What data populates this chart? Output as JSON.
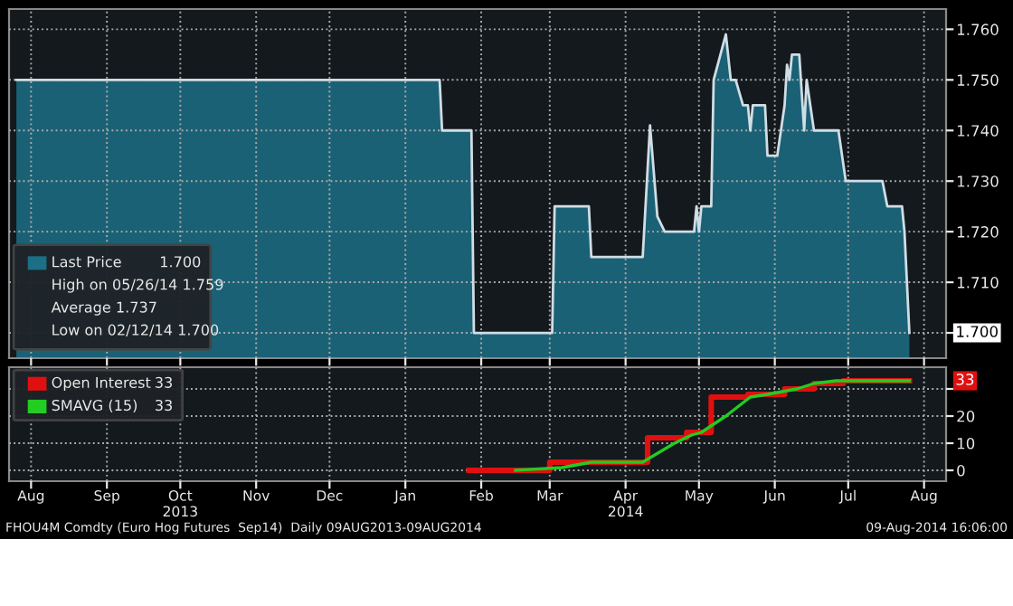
{
  "chart_data": [
    {
      "type": "area",
      "xlim": [
        "2013-08-06",
        "2014-08-24"
      ],
      "ylim": [
        1.695,
        1.764
      ],
      "yticks": [
        {
          "value": 1.7,
          "label": null
        },
        {
          "value": 1.71,
          "label": "1.710"
        },
        {
          "value": 1.72,
          "label": "1.720"
        },
        {
          "value": 1.73,
          "label": "1.730"
        },
        {
          "value": 1.74,
          "label": "1.740"
        },
        {
          "value": 1.75,
          "label": "1.750"
        },
        {
          "value": 1.76,
          "label": "1.760"
        }
      ],
      "xticks": [
        {
          "value": "2013-08-15",
          "label": null
        },
        {
          "value": "2013-09-15",
          "label": null
        },
        {
          "value": "2013-10-15",
          "label": null
        },
        {
          "value": "2013-11-15",
          "label": null
        },
        {
          "value": "2013-12-15",
          "label": null
        },
        {
          "value": "2014-01-15",
          "label": null
        },
        {
          "value": "2014-02-15",
          "label": null
        },
        {
          "value": "2014-03-15",
          "label": null
        },
        {
          "value": "2014-04-15",
          "label": null
        },
        {
          "value": "2014-05-15",
          "label": null
        },
        {
          "value": "2014-06-15",
          "label": null
        },
        {
          "value": "2014-07-15",
          "label": null
        },
        {
          "value": "2014-08-15",
          "label": null
        }
      ],
      "tick_labels": "y",
      "grid": true,
      "legend": "bottom left",
      "series": [
        {
          "name": "Last Price",
          "color": "#1c6f85",
          "x": [
            "2013-08-09",
            "2014-01-29",
            "2014-01-30",
            "2014-02-11",
            "2014-02-12",
            "2014-03-16",
            "2014-03-17",
            "2014-03-31",
            "2014-04-01",
            "2014-04-22",
            "2014-04-25",
            "2014-04-28",
            "2014-05-01",
            "2014-05-13",
            "2014-05-14",
            "2014-05-15",
            "2014-05-16",
            "2014-05-20",
            "2014-05-21",
            "2014-05-26",
            "2014-05-28",
            "2014-05-30",
            "2014-06-02",
            "2014-06-04",
            "2014-06-05",
            "2014-06-06",
            "2014-06-11",
            "2014-06-12",
            "2014-06-16",
            "2014-06-19",
            "2014-06-20",
            "2014-06-21",
            "2014-06-22",
            "2014-06-25",
            "2014-06-27",
            "2014-06-28",
            "2014-07-01",
            "2014-07-11",
            "2014-07-14",
            "2014-07-29",
            "2014-07-31",
            "2014-08-06",
            "2014-08-07",
            "2014-08-09"
          ],
          "values": [
            1.75,
            1.75,
            1.74,
            1.74,
            1.7,
            1.7,
            1.725,
            1.725,
            1.715,
            1.715,
            1.741,
            1.723,
            1.72,
            1.72,
            1.725,
            1.72,
            1.725,
            1.725,
            1.75,
            1.759,
            1.75,
            1.75,
            1.745,
            1.745,
            1.74,
            1.745,
            1.745,
            1.735,
            1.735,
            1.745,
            1.753,
            1.75,
            1.755,
            1.755,
            1.74,
            1.75,
            1.74,
            1.74,
            1.73,
            1.73,
            1.725,
            1.725,
            1.72,
            1.7
          ]
        }
      ],
      "annotations": [
        "1.700",
        "High on 05/26/14 1.759",
        "Average 1.737",
        "Low on 02/12/14 1.700",
        "1.700"
      ]
    },
    {
      "type": "step",
      "xlim": [
        "2013-08-06",
        "2014-08-24"
      ],
      "ylim": [
        -4,
        38
      ],
      "yticks": [
        0,
        10,
        20,
        {
          "value": 30,
          "label": null
        }
      ],
      "xticks": [
        {
          "value": "2013-08-15",
          "label": "Aug"
        },
        {
          "value": "2013-09-15",
          "label": "Sep"
        },
        {
          "value": "2013-10-15",
          "label": "Oct\n2013"
        },
        {
          "value": "2013-11-15",
          "label": "Nov"
        },
        {
          "value": "2013-12-15",
          "label": "Dec"
        },
        {
          "value": "2014-01-15",
          "label": "Jan"
        },
        {
          "value": "2014-02-15",
          "label": "Feb"
        },
        {
          "value": "2014-03-15",
          "label": "Mar"
        },
        {
          "value": "2014-04-15",
          "label": "Apr\n2014"
        },
        {
          "value": "2014-05-15",
          "label": "May"
        },
        {
          "value": "2014-06-15",
          "label": "Jun"
        },
        {
          "value": "2014-07-15",
          "label": "Jul"
        },
        {
          "value": "2014-08-15",
          "label": "Aug"
        }
      ],
      "grid": true,
      "legend": "top left",
      "series": [
        {
          "name": "Open Interest",
          "color": "#e01010",
          "type": "step",
          "x": [
            "2014-02-10",
            "2014-03-15",
            "2014-04-24",
            "2014-05-10",
            "2014-05-20",
            "2014-06-04",
            "2014-06-19",
            "2014-07-01",
            "2014-07-13",
            "2014-08-09"
          ],
          "values": [
            0,
            3,
            12,
            14,
            27,
            28,
            30,
            32,
            33,
            33
          ]
        },
        {
          "name": "SMAVG (15)",
          "color": "#22cc22",
          "type": "line",
          "x": [
            "2014-03-01",
            "2014-03-20",
            "2014-04-01",
            "2014-04-22",
            "2014-05-05",
            "2014-05-12",
            "2014-05-16",
            "2014-05-26",
            "2014-06-05",
            "2014-06-12",
            "2014-06-24",
            "2014-07-01",
            "2014-07-10",
            "2014-08-09"
          ],
          "values": [
            0,
            1,
            3,
            3,
            10,
            13,
            14,
            20,
            27,
            28,
            30,
            32,
            33,
            33
          ]
        }
      ],
      "annotations": [
        "33",
        "33",
        "FHOU4M Comdty (Euro Hog Futures  Sep14)  Daily 09AUG2013-09AUG2014",
        "09-Aug-2014 16:06:00",
        "33"
      ]
    }
  ]
}
